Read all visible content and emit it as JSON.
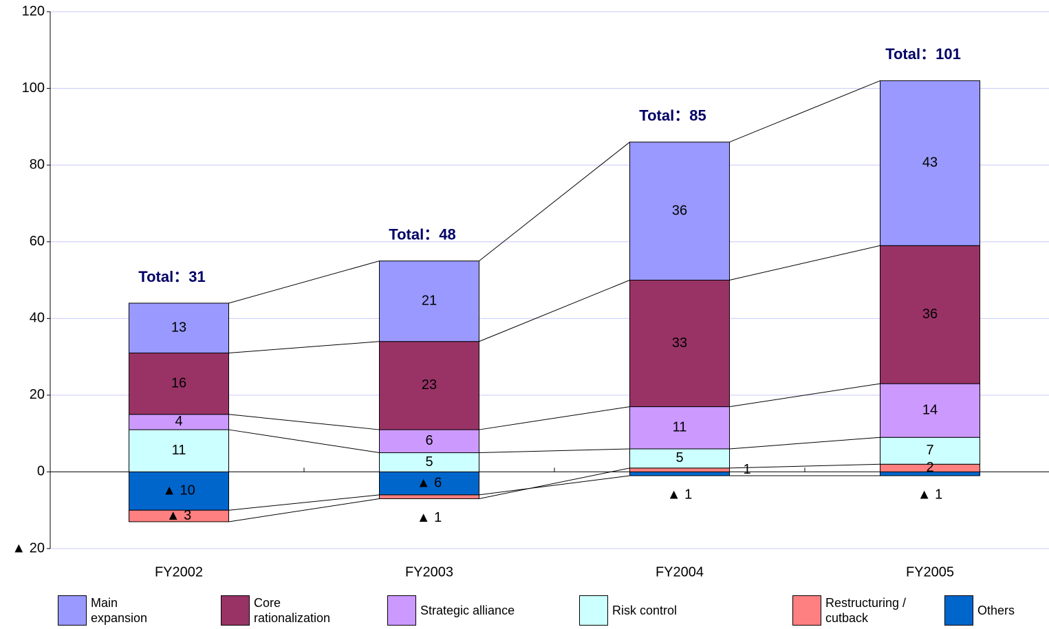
{
  "chart_data": {
    "type": "stacked_bar",
    "categories": [
      "FY2002",
      "FY2003",
      "FY2004",
      "FY2005"
    ],
    "series": [
      {
        "name": "Main expansion",
        "color": "#9999ff",
        "values": [
          13,
          21,
          36,
          43
        ]
      },
      {
        "name": "Core rationalization",
        "color": "#993366",
        "values": [
          16,
          23,
          33,
          36
        ]
      },
      {
        "name": "Strategic alliance",
        "color": "#cc99ff",
        "values": [
          4,
          6,
          11,
          14
        ]
      },
      {
        "name": "Risk control",
        "color": "#ccffff",
        "values": [
          11,
          5,
          5,
          7
        ]
      },
      {
        "name": "Restructuring / cutback",
        "color": "#ff8080",
        "values": [
          -3,
          -1,
          1,
          2
        ],
        "value_labels": [
          "▲ 3",
          "▲ 1",
          "1",
          "2"
        ]
      },
      {
        "name": "Others",
        "color": "#0066cc",
        "values": [
          -10,
          -6,
          -1,
          -1
        ],
        "value_labels": [
          "▲ 10",
          "▲ 6",
          "▲ 1",
          "▲ 1"
        ]
      }
    ],
    "annotations": [
      "Total：31",
      "Total：48",
      "Total：85",
      "Total：101"
    ],
    "ylim": [
      -20,
      120
    ],
    "yticks": [
      {
        "value": -20,
        "label": "▲ 20"
      },
      0,
      20,
      40,
      60,
      80,
      100,
      120
    ],
    "grid": true
  }
}
